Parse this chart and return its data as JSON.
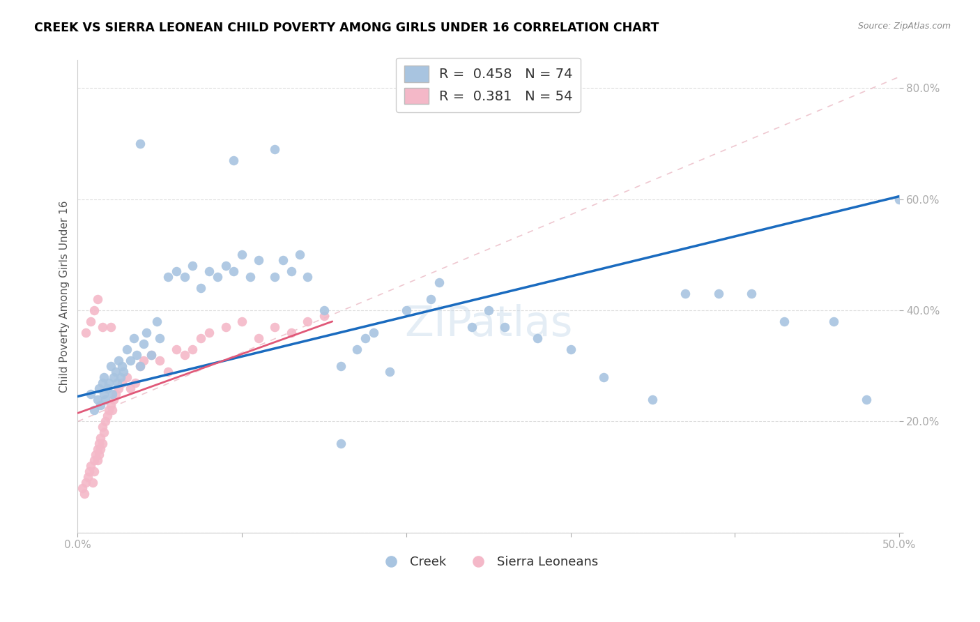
{
  "title": "CREEK VS SIERRA LEONEAN CHILD POVERTY AMONG GIRLS UNDER 16 CORRELATION CHART",
  "source": "Source: ZipAtlas.com",
  "ylabel": "Child Poverty Among Girls Under 16",
  "xlim": [
    0.0,
    0.5
  ],
  "ylim": [
    0.0,
    0.85
  ],
  "xticks": [
    0.0,
    0.1,
    0.2,
    0.3,
    0.4,
    0.5
  ],
  "xticklabels": [
    "0.0%",
    "",
    "",
    "",
    "",
    "50.0%"
  ],
  "yticks": [
    0.2,
    0.4,
    0.6,
    0.8
  ],
  "yticklabels": [
    "20.0%",
    "40.0%",
    "60.0%",
    "80.0%"
  ],
  "creek_R": 0.458,
  "creek_N": 74,
  "sierra_R": 0.381,
  "sierra_N": 54,
  "creek_color": "#a8c4e0",
  "sierra_color": "#f4b8c8",
  "creek_line_color": "#1a6bbf",
  "sierra_line_color": "#e05878",
  "creek_line_x": [
    0.0,
    0.5
  ],
  "creek_line_y": [
    0.245,
    0.605
  ],
  "sierra_line_x": [
    0.0,
    0.155
  ],
  "sierra_line_y": [
    0.215,
    0.38
  ],
  "creek_x": [
    0.008,
    0.01,
    0.012,
    0.013,
    0.014,
    0.015,
    0.016,
    0.016,
    0.017,
    0.018,
    0.019,
    0.02,
    0.021,
    0.022,
    0.023,
    0.024,
    0.025,
    0.026,
    0.027,
    0.028,
    0.03,
    0.032,
    0.034,
    0.036,
    0.038,
    0.04,
    0.042,
    0.045,
    0.048,
    0.05,
    0.055,
    0.06,
    0.065,
    0.07,
    0.075,
    0.08,
    0.085,
    0.09,
    0.095,
    0.1,
    0.105,
    0.11,
    0.12,
    0.125,
    0.13,
    0.135,
    0.14,
    0.15,
    0.16,
    0.17,
    0.175,
    0.18,
    0.19,
    0.2,
    0.215,
    0.22,
    0.24,
    0.25,
    0.26,
    0.28,
    0.3,
    0.32,
    0.35,
    0.37,
    0.39,
    0.41,
    0.43,
    0.46,
    0.48,
    0.5,
    0.038,
    0.095,
    0.12,
    0.16
  ],
  "creek_y": [
    0.25,
    0.22,
    0.24,
    0.26,
    0.23,
    0.27,
    0.25,
    0.28,
    0.24,
    0.26,
    0.27,
    0.3,
    0.25,
    0.28,
    0.29,
    0.27,
    0.31,
    0.28,
    0.3,
    0.29,
    0.33,
    0.31,
    0.35,
    0.32,
    0.3,
    0.34,
    0.36,
    0.32,
    0.38,
    0.35,
    0.46,
    0.47,
    0.46,
    0.48,
    0.44,
    0.47,
    0.46,
    0.48,
    0.47,
    0.5,
    0.46,
    0.49,
    0.46,
    0.49,
    0.47,
    0.5,
    0.46,
    0.4,
    0.3,
    0.33,
    0.35,
    0.36,
    0.29,
    0.4,
    0.42,
    0.45,
    0.37,
    0.4,
    0.37,
    0.35,
    0.33,
    0.28,
    0.24,
    0.43,
    0.43,
    0.43,
    0.38,
    0.38,
    0.24,
    0.6,
    0.7,
    0.67,
    0.69,
    0.16
  ],
  "sierra_x": [
    0.003,
    0.004,
    0.005,
    0.006,
    0.007,
    0.008,
    0.009,
    0.01,
    0.01,
    0.011,
    0.012,
    0.012,
    0.013,
    0.013,
    0.014,
    0.014,
    0.015,
    0.015,
    0.016,
    0.017,
    0.018,
    0.019,
    0.02,
    0.021,
    0.022,
    0.023,
    0.025,
    0.027,
    0.03,
    0.032,
    0.035,
    0.038,
    0.04,
    0.045,
    0.05,
    0.055,
    0.06,
    0.065,
    0.07,
    0.075,
    0.08,
    0.09,
    0.1,
    0.11,
    0.12,
    0.13,
    0.14,
    0.15,
    0.005,
    0.008,
    0.01,
    0.012,
    0.015,
    0.02
  ],
  "sierra_y": [
    0.08,
    0.07,
    0.09,
    0.1,
    0.11,
    0.12,
    0.09,
    0.13,
    0.11,
    0.14,
    0.13,
    0.15,
    0.14,
    0.16,
    0.15,
    0.17,
    0.16,
    0.19,
    0.18,
    0.2,
    0.21,
    0.22,
    0.23,
    0.22,
    0.24,
    0.25,
    0.26,
    0.27,
    0.28,
    0.26,
    0.27,
    0.3,
    0.31,
    0.32,
    0.31,
    0.29,
    0.33,
    0.32,
    0.33,
    0.35,
    0.36,
    0.37,
    0.38,
    0.35,
    0.37,
    0.36,
    0.38,
    0.39,
    0.36,
    0.38,
    0.4,
    0.42,
    0.37,
    0.37
  ]
}
